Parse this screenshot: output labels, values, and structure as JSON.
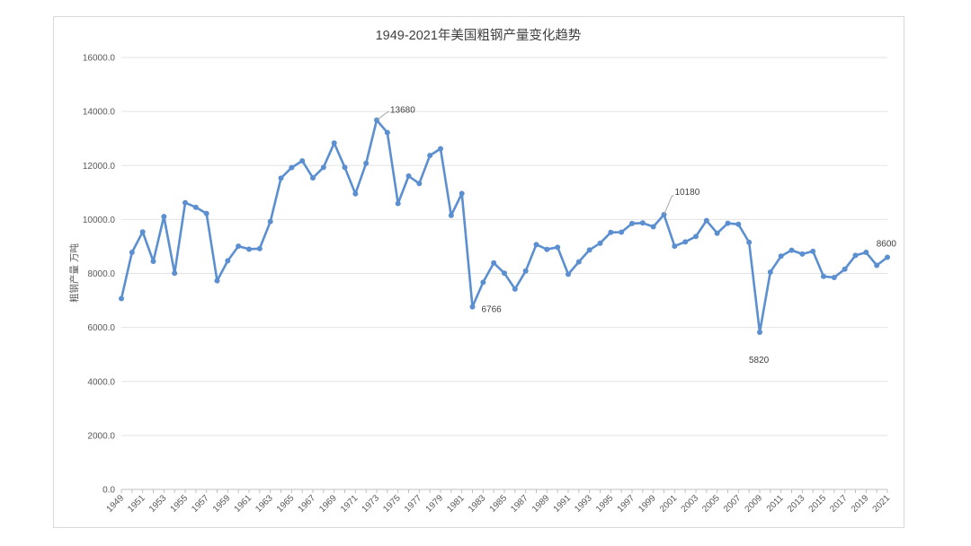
{
  "chart_data": {
    "type": "line",
    "title": "1949-2021年美国粗钢产量变化趋势",
    "ylabel": "粗钢产量  万吨",
    "xlabel": "",
    "ylim": [
      0,
      16000
    ],
    "yticks": [
      "0.0",
      "2000.0",
      "4000.0",
      "6000.0",
      "8000.0",
      "10000.0",
      "12000.0",
      "14000.0",
      "16000.0"
    ],
    "ytick_values": [
      0,
      2000,
      4000,
      6000,
      8000,
      10000,
      12000,
      14000,
      16000
    ],
    "grid": true,
    "legend": "none",
    "line_color": "#5b8fd0",
    "x": [
      1949,
      1950,
      1951,
      1952,
      1953,
      1954,
      1955,
      1956,
      1957,
      1958,
      1959,
      1960,
      1961,
      1962,
      1963,
      1964,
      1965,
      1966,
      1967,
      1968,
      1969,
      1970,
      1971,
      1972,
      1973,
      1974,
      1975,
      1976,
      1977,
      1978,
      1979,
      1980,
      1981,
      1982,
      1983,
      1984,
      1985,
      1986,
      1987,
      1988,
      1989,
      1990,
      1991,
      1992,
      1993,
      1994,
      1995,
      1996,
      1997,
      1998,
      1999,
      2000,
      2001,
      2002,
      2003,
      2004,
      2005,
      2006,
      2007,
      2008,
      2009,
      2010,
      2011,
      2012,
      2013,
      2014,
      2015,
      2016,
      2017,
      2018,
      2019,
      2020,
      2021
    ],
    "xticks": [
      "1949",
      "1951",
      "1953",
      "1955",
      "1957",
      "1959",
      "1961",
      "1963",
      "1965",
      "1967",
      "1969",
      "1971",
      "1973",
      "1975",
      "1977",
      "1979",
      "1981",
      "1983",
      "1985",
      "1987",
      "1989",
      "1991",
      "1993",
      "1995",
      "1997",
      "1999",
      "2001",
      "2003",
      "2005",
      "2007",
      "2009",
      "2011",
      "2013",
      "2015",
      "2017",
      "2019",
      "2021"
    ],
    "values": [
      7070,
      8780,
      9540,
      8450,
      10110,
      8010,
      10620,
      10450,
      10220,
      7730,
      8470,
      9010,
      8900,
      8920,
      9920,
      11530,
      11920,
      12170,
      11540,
      11930,
      12830,
      11930,
      10950,
      12080,
      13680,
      13220,
      10590,
      11610,
      11330,
      12370,
      12620,
      10150,
      10960,
      6766,
      7670,
      8390,
      8010,
      7420,
      8090,
      9070,
      8890,
      8970,
      7970,
      8430,
      8870,
      9120,
      9520,
      9530,
      9850,
      9870,
      9730,
      10180,
      9010,
      9170,
      9370,
      9960,
      9490,
      9860,
      9820,
      9150,
      5820,
      8050,
      8640,
      8860,
      8720,
      8820,
      7890,
      7850,
      8160,
      8670,
      8780,
      8300,
      8600
    ],
    "annotations": [
      {
        "year": 1973,
        "value": 13680,
        "text": "13680"
      },
      {
        "year": 1982,
        "value": 6766,
        "text": "6766"
      },
      {
        "year": 2000,
        "value": 10180,
        "text": "10180"
      },
      {
        "year": 2009,
        "value": 5820,
        "text": "5820"
      },
      {
        "year": 2021,
        "value": 8600,
        "text": "8600"
      }
    ]
  }
}
